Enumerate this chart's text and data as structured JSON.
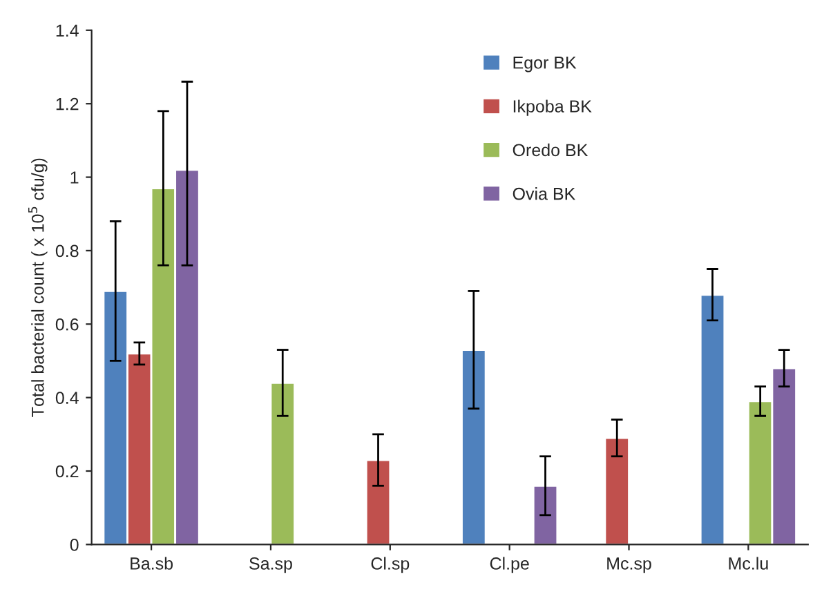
{
  "chart_data": {
    "type": "bar",
    "ylabel": "Total bacterial count ( x 10$^{5}$ cfu/g)",
    "categories": [
      "Ba.sb",
      "Sa.sp",
      "Cl.sp",
      "Cl.pe",
      "Mc.sp",
      "Mc.lu"
    ],
    "series": [
      {
        "name": "Egor BK",
        "color": "#4f81bd",
        "values": [
          0.69,
          null,
          null,
          0.53,
          null,
          0.68
        ],
        "errors": [
          [
            0.5,
            0.88
          ],
          null,
          null,
          [
            0.37,
            0.69
          ],
          null,
          [
            0.61,
            0.75
          ]
        ]
      },
      {
        "name": "Ikpoba BK",
        "color": "#c0504d",
        "values": [
          0.52,
          null,
          0.23,
          null,
          0.29,
          null
        ],
        "errors": [
          [
            0.49,
            0.55
          ],
          null,
          [
            0.16,
            0.3
          ],
          null,
          [
            0.24,
            0.34
          ],
          null
        ]
      },
      {
        "name": "Oredo BK",
        "color": "#9bbb59",
        "values": [
          0.97,
          0.44,
          null,
          null,
          null,
          0.39
        ],
        "errors": [
          [
            0.76,
            1.18
          ],
          [
            0.35,
            0.53
          ],
          null,
          null,
          null,
          [
            0.35,
            0.43
          ]
        ]
      },
      {
        "name": "Ovia BK",
        "color": "#8064a2",
        "values": [
          1.02,
          null,
          null,
          0.16,
          null,
          0.48
        ],
        "errors": [
          [
            0.76,
            1.26
          ],
          null,
          null,
          [
            0.08,
            0.24
          ],
          null,
          [
            0.43,
            0.53
          ]
        ]
      }
    ],
    "ylim": [
      0,
      1.4
    ],
    "yticks": [
      0,
      0.2,
      0.4,
      0.6,
      0.8,
      1,
      1.2,
      1.4
    ],
    "legend": "top right",
    "grid": false
  }
}
